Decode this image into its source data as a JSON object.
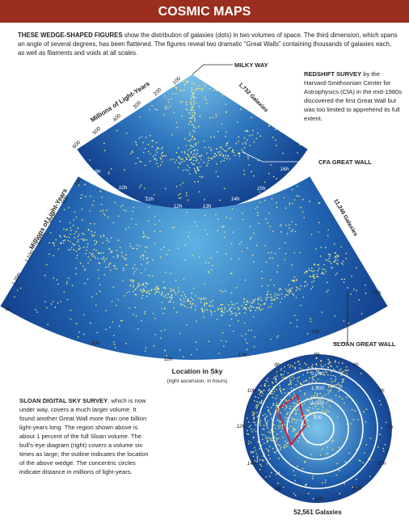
{
  "header": {
    "title": "COSMIC MAPS"
  },
  "intro": {
    "lead": "THESE WEDGE-SHAPED FIGURES",
    "text": " show the distribution of galaxies (dots) in two volumes of space. The third dimension, which spans an angle of several degrees, has been flattened. The figures reveal two dramatic “Great Walls” containing thousands of galaxies each, as well as filaments and voids at all scales."
  },
  "labels": {
    "milky_way": "MILKY WAY",
    "cfa_wall": "CFA GREAT WALL",
    "sloan_wall": "SLOAN GREAT WALL"
  },
  "cfa_wedge": {
    "count": "1,732 Galaxies",
    "axis_title": "Millions of Light-Years",
    "distances": [
      "600",
      "500",
      "400",
      "300",
      "200",
      "100"
    ],
    "hours": [
      "9h",
      "10h",
      "11h",
      "12h",
      "13h",
      "14h",
      "15h",
      "16h"
    ]
  },
  "sloan_wedge": {
    "count": "11,246 Galaxies",
    "axis_title": "Millions of Light-Years",
    "distances": [
      "1,200",
      "1,100",
      "1,000",
      "900",
      "800",
      "700"
    ],
    "hours": [
      "9h",
      "10h",
      "11h",
      "12h",
      "13h",
      "14h"
    ]
  },
  "redshift_note": {
    "lead": "REDSHIFT SURVEY",
    "text": " by the Harvard-Smithsonian Center for Astrophysics (CfA) in the mid-1980s discovered the first Great Wall but was too limited to apprehend its full extent."
  },
  "location": {
    "title": "Location in Sky",
    "subtitle": "(right ascension, in hours)"
  },
  "sloan_note": {
    "lead": "SLOAN DIGITAL SKY SURVEY",
    "text": ", which is now under way, covers a much larger volume. It found another Great Wall more than one billion light-years long. The region shown above is about 1 percent of the full Sloan volume. The bull's-eye diagram (right) covers a volume six times as large; the outline indicates the location of the above wedge. The concentric circles indicate distance in millions of light-years."
  },
  "bullseye": {
    "hours": [
      "6h",
      "4h",
      "2h",
      "0h",
      "22h",
      "20h",
      "18h",
      "16h",
      "14h",
      "12h",
      "10h",
      "8h"
    ],
    "rings": [
      "500",
      "1,000",
      "1,500",
      "2,000"
    ],
    "count": "52,561 Galaxies"
  }
}
